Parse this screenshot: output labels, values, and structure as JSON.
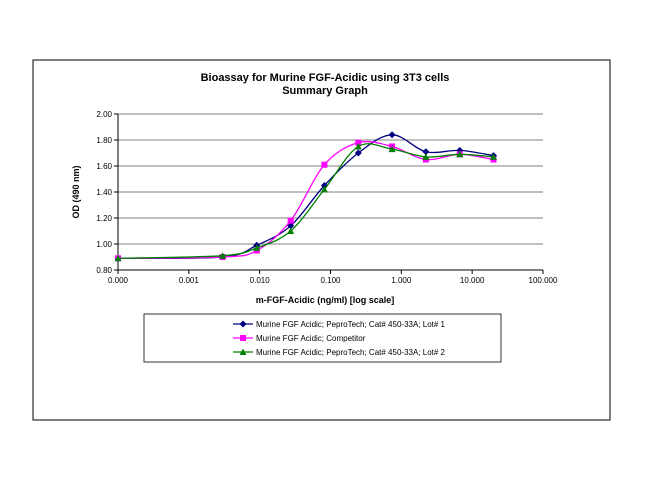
{
  "chart_data": {
    "type": "line",
    "title": "Bioassay for Murine FGF-Acidic using 3T3 cells",
    "subtitle": "Summary Graph",
    "xlabel": "m-FGF-Acidic (ng/ml) [log scale]",
    "ylabel": "OD (490 nm)",
    "xscale": "log",
    "xlim": [
      0.0001,
      100
    ],
    "ylim": [
      0.8,
      2.0
    ],
    "xticks": [
      0.0001,
      0.001,
      0.01,
      0.1,
      1,
      10,
      100
    ],
    "xtick_labels": [
      "0.000",
      "0.001",
      "0.010",
      "0.100",
      "1.000",
      "10.000",
      "100.000"
    ],
    "yticks": [
      0.8,
      1.0,
      1.2,
      1.4,
      1.6,
      1.8,
      2.0
    ],
    "ytick_labels": [
      "0.80",
      "1.00",
      "1.20",
      "1.40",
      "1.60",
      "1.80",
      "2.00"
    ],
    "grid": "horizontal",
    "legend_position": "bottom",
    "x": [
      0.0001,
      0.003,
      0.0091,
      0.0274,
      0.082,
      0.247,
      0.74,
      2.22,
      6.67,
      20
    ],
    "series": [
      {
        "name": "Murine FGF Acidic; PeproTech; Cat# 450-33A; Lot# 1",
        "color": "#000080",
        "marker": "diamond",
        "values": [
          0.89,
          0.9,
          0.99,
          1.14,
          1.45,
          1.7,
          1.84,
          1.71,
          1.72,
          1.68
        ]
      },
      {
        "name": "Murine FGF Acidic; Competitor",
        "color": "#ff00ff",
        "marker": "square",
        "values": [
          0.89,
          0.9,
          0.95,
          1.18,
          1.61,
          1.78,
          1.75,
          1.65,
          1.69,
          1.65
        ]
      },
      {
        "name": "Murine FGF Acidic; PeproTech; Cat# 450-33A; Lot# 2",
        "color": "#008000",
        "marker": "triangle",
        "values": [
          0.89,
          0.91,
          0.97,
          1.1,
          1.42,
          1.75,
          1.73,
          1.67,
          1.69,
          1.67
        ]
      }
    ]
  }
}
